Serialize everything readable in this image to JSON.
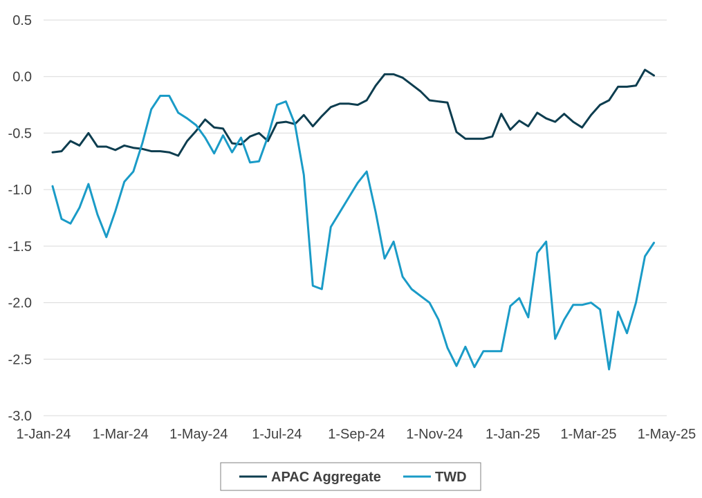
{
  "chart_data": {
    "type": "line",
    "title": "",
    "xlabel": "",
    "ylabel": "",
    "ylim": [
      -3.0,
      0.5
    ],
    "yticks": [
      "0.5",
      "0.0",
      "-0.5",
      "-1.0",
      "-1.5",
      "-2.0",
      "-2.5",
      "-3.0"
    ],
    "ytick_values": [
      0.5,
      0.0,
      -0.5,
      -1.0,
      -1.5,
      -2.0,
      -2.5,
      -3.0
    ],
    "xlim": [
      "2024-01-01",
      "2025-05-01"
    ],
    "xticks": [
      {
        "date": "2024-01-01",
        "label": "1-Jan-24"
      },
      {
        "date": "2024-03-01",
        "label": "1-Mar-24"
      },
      {
        "date": "2024-05-01",
        "label": "1-May-24"
      },
      {
        "date": "2024-07-01",
        "label": "1-Jul-24"
      },
      {
        "date": "2024-09-01",
        "label": "1-Sep-24"
      },
      {
        "date": "2024-11-01",
        "label": "1-Nov-24"
      },
      {
        "date": "2025-01-01",
        "label": "1-Jan-25"
      },
      {
        "date": "2025-03-01",
        "label": "1-Mar-25"
      },
      {
        "date": "2025-05-01",
        "label": "1-May-25"
      }
    ],
    "grid": "horizontal",
    "legend_position": "bottom",
    "series": [
      {
        "name": "APAC Aggregate",
        "color": "#0d3d4f",
        "points": [
          [
            "2024-01-08",
            -0.67
          ],
          [
            "2024-01-15",
            -0.66
          ],
          [
            "2024-01-22",
            -0.57
          ],
          [
            "2024-01-29",
            -0.61
          ],
          [
            "2024-02-05",
            -0.5
          ],
          [
            "2024-02-12",
            -0.62
          ],
          [
            "2024-02-19",
            -0.62
          ],
          [
            "2024-02-26",
            -0.65
          ],
          [
            "2024-03-04",
            -0.61
          ],
          [
            "2024-03-11",
            -0.63
          ],
          [
            "2024-03-18",
            -0.64
          ],
          [
            "2024-03-25",
            -0.66
          ],
          [
            "2024-04-01",
            -0.66
          ],
          [
            "2024-04-08",
            -0.67
          ],
          [
            "2024-04-15",
            -0.7
          ],
          [
            "2024-04-22",
            -0.57
          ],
          [
            "2024-04-29",
            -0.48
          ],
          [
            "2024-05-06",
            -0.38
          ],
          [
            "2024-05-13",
            -0.45
          ],
          [
            "2024-05-20",
            -0.46
          ],
          [
            "2024-05-27",
            -0.59
          ],
          [
            "2024-06-03",
            -0.6
          ],
          [
            "2024-06-10",
            -0.53
          ],
          [
            "2024-06-17",
            -0.5
          ],
          [
            "2024-06-24",
            -0.57
          ],
          [
            "2024-07-01",
            -0.41
          ],
          [
            "2024-07-08",
            -0.4
          ],
          [
            "2024-07-15",
            -0.42
          ],
          [
            "2024-07-22",
            -0.34
          ],
          [
            "2024-07-29",
            -0.44
          ],
          [
            "2024-08-05",
            -0.35
          ],
          [
            "2024-08-12",
            -0.27
          ],
          [
            "2024-08-19",
            -0.24
          ],
          [
            "2024-08-26",
            -0.24
          ],
          [
            "2024-09-02",
            -0.25
          ],
          [
            "2024-09-09",
            -0.21
          ],
          [
            "2024-09-16",
            -0.08
          ],
          [
            "2024-09-23",
            0.02
          ],
          [
            "2024-09-30",
            0.02
          ],
          [
            "2024-10-07",
            -0.01
          ],
          [
            "2024-10-14",
            -0.07
          ],
          [
            "2024-10-21",
            -0.13
          ],
          [
            "2024-10-28",
            -0.21
          ],
          [
            "2024-11-04",
            -0.22
          ],
          [
            "2024-11-11",
            -0.23
          ],
          [
            "2024-11-18",
            -0.49
          ],
          [
            "2024-11-25",
            -0.55
          ],
          [
            "2024-12-02",
            -0.55
          ],
          [
            "2024-12-09",
            -0.55
          ],
          [
            "2024-12-16",
            -0.53
          ],
          [
            "2024-12-23",
            -0.33
          ],
          [
            "2024-12-30",
            -0.47
          ],
          [
            "2025-01-06",
            -0.39
          ],
          [
            "2025-01-13",
            -0.44
          ],
          [
            "2025-01-20",
            -0.32
          ],
          [
            "2025-01-27",
            -0.37
          ],
          [
            "2025-02-03",
            -0.4
          ],
          [
            "2025-02-10",
            -0.33
          ],
          [
            "2025-02-17",
            -0.4
          ],
          [
            "2025-02-24",
            -0.45
          ],
          [
            "2025-03-03",
            -0.34
          ],
          [
            "2025-03-10",
            -0.25
          ],
          [
            "2025-03-17",
            -0.21
          ],
          [
            "2025-03-24",
            -0.09
          ],
          [
            "2025-03-31",
            -0.09
          ],
          [
            "2025-04-07",
            -0.08
          ],
          [
            "2025-04-14",
            0.06
          ],
          [
            "2025-04-21",
            0.01
          ]
        ]
      },
      {
        "name": "TWD",
        "color": "#1a9bc7",
        "points": [
          [
            "2024-01-08",
            -0.97
          ],
          [
            "2024-01-15",
            -1.26
          ],
          [
            "2024-01-22",
            -1.3
          ],
          [
            "2024-01-29",
            -1.16
          ],
          [
            "2024-02-05",
            -0.95
          ],
          [
            "2024-02-12",
            -1.22
          ],
          [
            "2024-02-19",
            -1.42
          ],
          [
            "2024-02-26",
            -1.19
          ],
          [
            "2024-03-04",
            -0.93
          ],
          [
            "2024-03-11",
            -0.84
          ],
          [
            "2024-03-18",
            -0.59
          ],
          [
            "2024-03-25",
            -0.29
          ],
          [
            "2024-04-01",
            -0.17
          ],
          [
            "2024-04-08",
            -0.17
          ],
          [
            "2024-04-15",
            -0.32
          ],
          [
            "2024-04-22",
            -0.37
          ],
          [
            "2024-04-29",
            -0.43
          ],
          [
            "2024-05-06",
            -0.54
          ],
          [
            "2024-05-13",
            -0.68
          ],
          [
            "2024-05-20",
            -0.52
          ],
          [
            "2024-05-27",
            -0.67
          ],
          [
            "2024-06-03",
            -0.54
          ],
          [
            "2024-06-10",
            -0.76
          ],
          [
            "2024-06-17",
            -0.75
          ],
          [
            "2024-06-24",
            -0.53
          ],
          [
            "2024-07-01",
            -0.25
          ],
          [
            "2024-07-08",
            -0.22
          ],
          [
            "2024-07-15",
            -0.42
          ],
          [
            "2024-07-22",
            -0.87
          ],
          [
            "2024-07-29",
            -1.85
          ],
          [
            "2024-08-05",
            -1.88
          ],
          [
            "2024-08-12",
            -1.33
          ],
          [
            "2024-08-19",
            -1.2
          ],
          [
            "2024-08-26",
            -1.07
          ],
          [
            "2024-09-02",
            -0.94
          ],
          [
            "2024-09-09",
            -0.84
          ],
          [
            "2024-09-16",
            -1.2
          ],
          [
            "2024-09-23",
            -1.61
          ],
          [
            "2024-09-30",
            -1.46
          ],
          [
            "2024-10-07",
            -1.77
          ],
          [
            "2024-10-14",
            -1.88
          ],
          [
            "2024-10-21",
            -1.94
          ],
          [
            "2024-10-28",
            -2.0
          ],
          [
            "2024-11-04",
            -2.15
          ],
          [
            "2024-11-11",
            -2.4
          ],
          [
            "2024-11-18",
            -2.56
          ],
          [
            "2024-11-25",
            -2.39
          ],
          [
            "2024-12-02",
            -2.57
          ],
          [
            "2024-12-09",
            -2.43
          ],
          [
            "2024-12-16",
            -2.43
          ],
          [
            "2024-12-23",
            -2.43
          ],
          [
            "2024-12-30",
            -2.03
          ],
          [
            "2025-01-06",
            -1.96
          ],
          [
            "2025-01-13",
            -2.13
          ],
          [
            "2025-01-20",
            -1.56
          ],
          [
            "2025-01-27",
            -1.46
          ],
          [
            "2025-02-03",
            -2.32
          ],
          [
            "2025-02-10",
            -2.15
          ],
          [
            "2025-02-17",
            -2.02
          ],
          [
            "2025-02-24",
            -2.02
          ],
          [
            "2025-03-03",
            -2.0
          ],
          [
            "2025-03-10",
            -2.06
          ],
          [
            "2025-03-17",
            -2.59
          ],
          [
            "2025-03-24",
            -2.08
          ],
          [
            "2025-03-31",
            -2.27
          ],
          [
            "2025-04-07",
            -2.0
          ],
          [
            "2025-04-14",
            -1.59
          ],
          [
            "2025-04-21",
            -1.47
          ]
        ]
      }
    ]
  }
}
